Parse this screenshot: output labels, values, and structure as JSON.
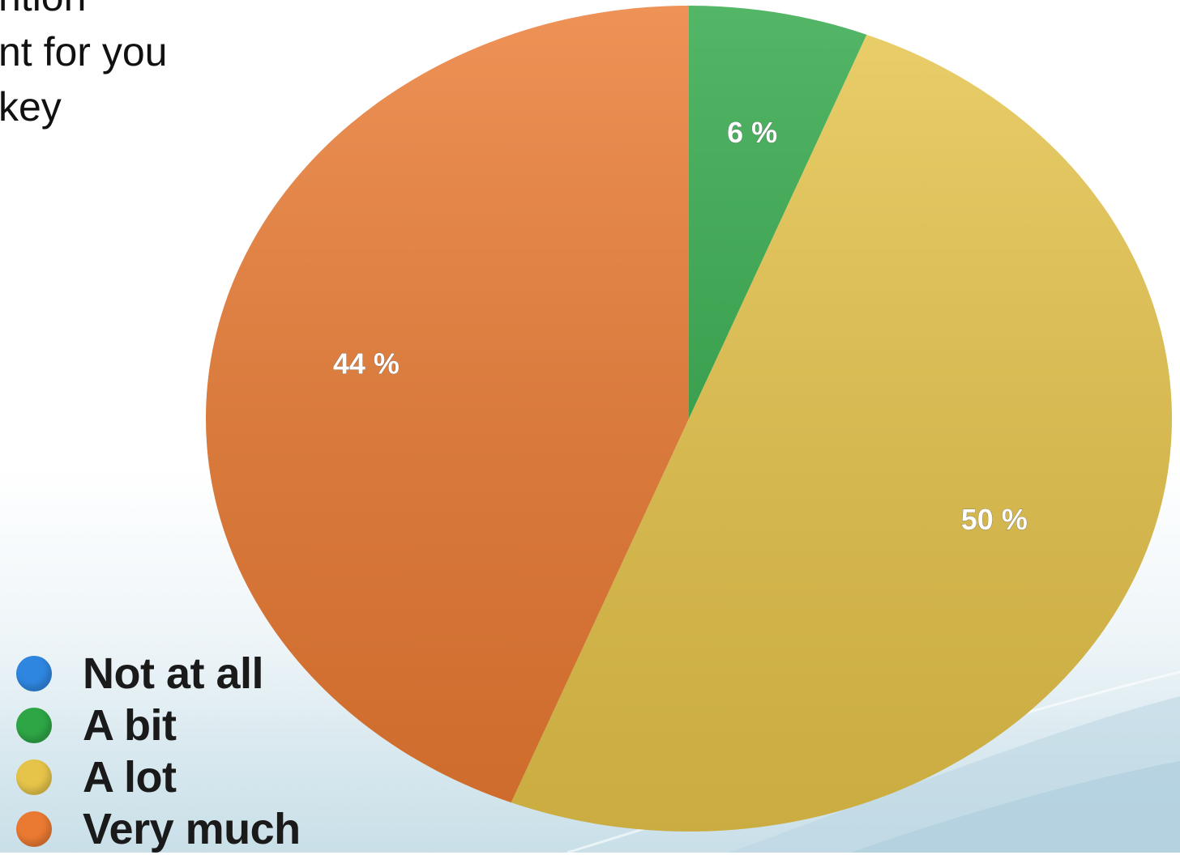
{
  "title_fragment": "ntion\nnt for you\nkey",
  "chart_data": {
    "type": "pie",
    "title": "",
    "slices": [
      {
        "label": "Not at all",
        "value": 0,
        "display": "",
        "color": "#2f86e0"
      },
      {
        "label": "A bit",
        "value": 6,
        "display": "6 %",
        "color": "#2ea646"
      },
      {
        "label": "A lot",
        "value": 50,
        "display": "50 %",
        "color": "#e6c44a"
      },
      {
        "label": "Very much",
        "value": 44,
        "display": "44 %",
        "color": "#ea7a32"
      }
    ],
    "legend_placement": "bottom-left"
  }
}
